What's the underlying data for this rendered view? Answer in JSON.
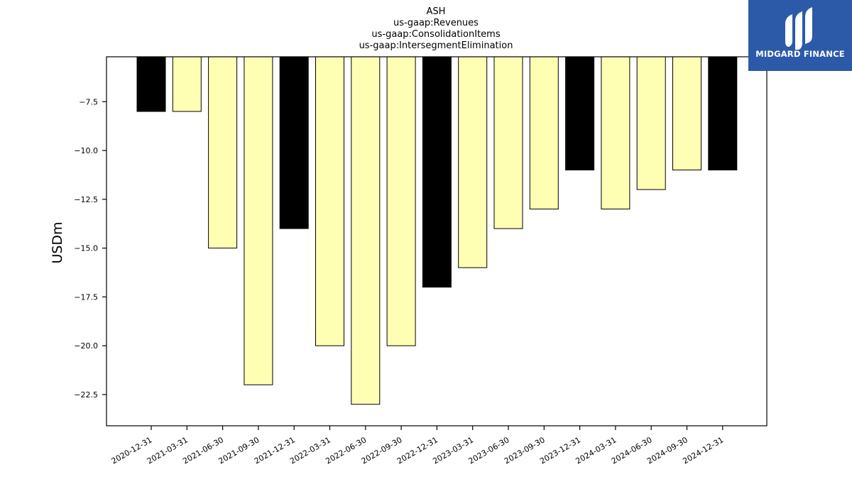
{
  "chart_data": {
    "type": "bar",
    "title_lines": [
      "ASH",
      "us-gaap:Revenues",
      "us-gaap:ConsolidationItems",
      "us-gaap:IntersegmentElimination"
    ],
    "ylabel": "USDm",
    "categories": [
      "2020-12-31",
      "2021-03-31",
      "2021-06-30",
      "2021-09-30",
      "2021-12-31",
      "2022-03-31",
      "2022-06-30",
      "2022-09-30",
      "2022-12-31",
      "2023-03-31",
      "2023-06-30",
      "2023-09-30",
      "2023-12-31",
      "2024-03-31",
      "2024-06-30",
      "2024-09-30",
      "2024-12-31"
    ],
    "values": [
      -8,
      -8,
      -15,
      -22,
      -14,
      -20,
      -23,
      -20,
      -17,
      -16,
      -14,
      -13,
      -11,
      -13,
      -12,
      -11,
      -11
    ],
    "highlight": [
      true,
      false,
      false,
      false,
      true,
      false,
      false,
      false,
      true,
      false,
      false,
      false,
      true,
      false,
      false,
      false,
      true
    ],
    "colors": {
      "highlight": "#000000",
      "normal": "#ffffb3",
      "edge": "#000000"
    },
    "yticks": [
      -7.5,
      -10.0,
      -12.5,
      -15.0,
      -17.5,
      -20.0,
      -22.5
    ],
    "ytick_labels": [
      "−7.5",
      "−10.0",
      "−12.5",
      "−15.0",
      "−17.5",
      "−20.0",
      "−22.5"
    ],
    "ylim": [
      -24.1,
      -5.2
    ],
    "grid": false,
    "legend": "none"
  },
  "logo": {
    "text": "MIDGARD FINANCE",
    "background": "#2d5aa8"
  }
}
